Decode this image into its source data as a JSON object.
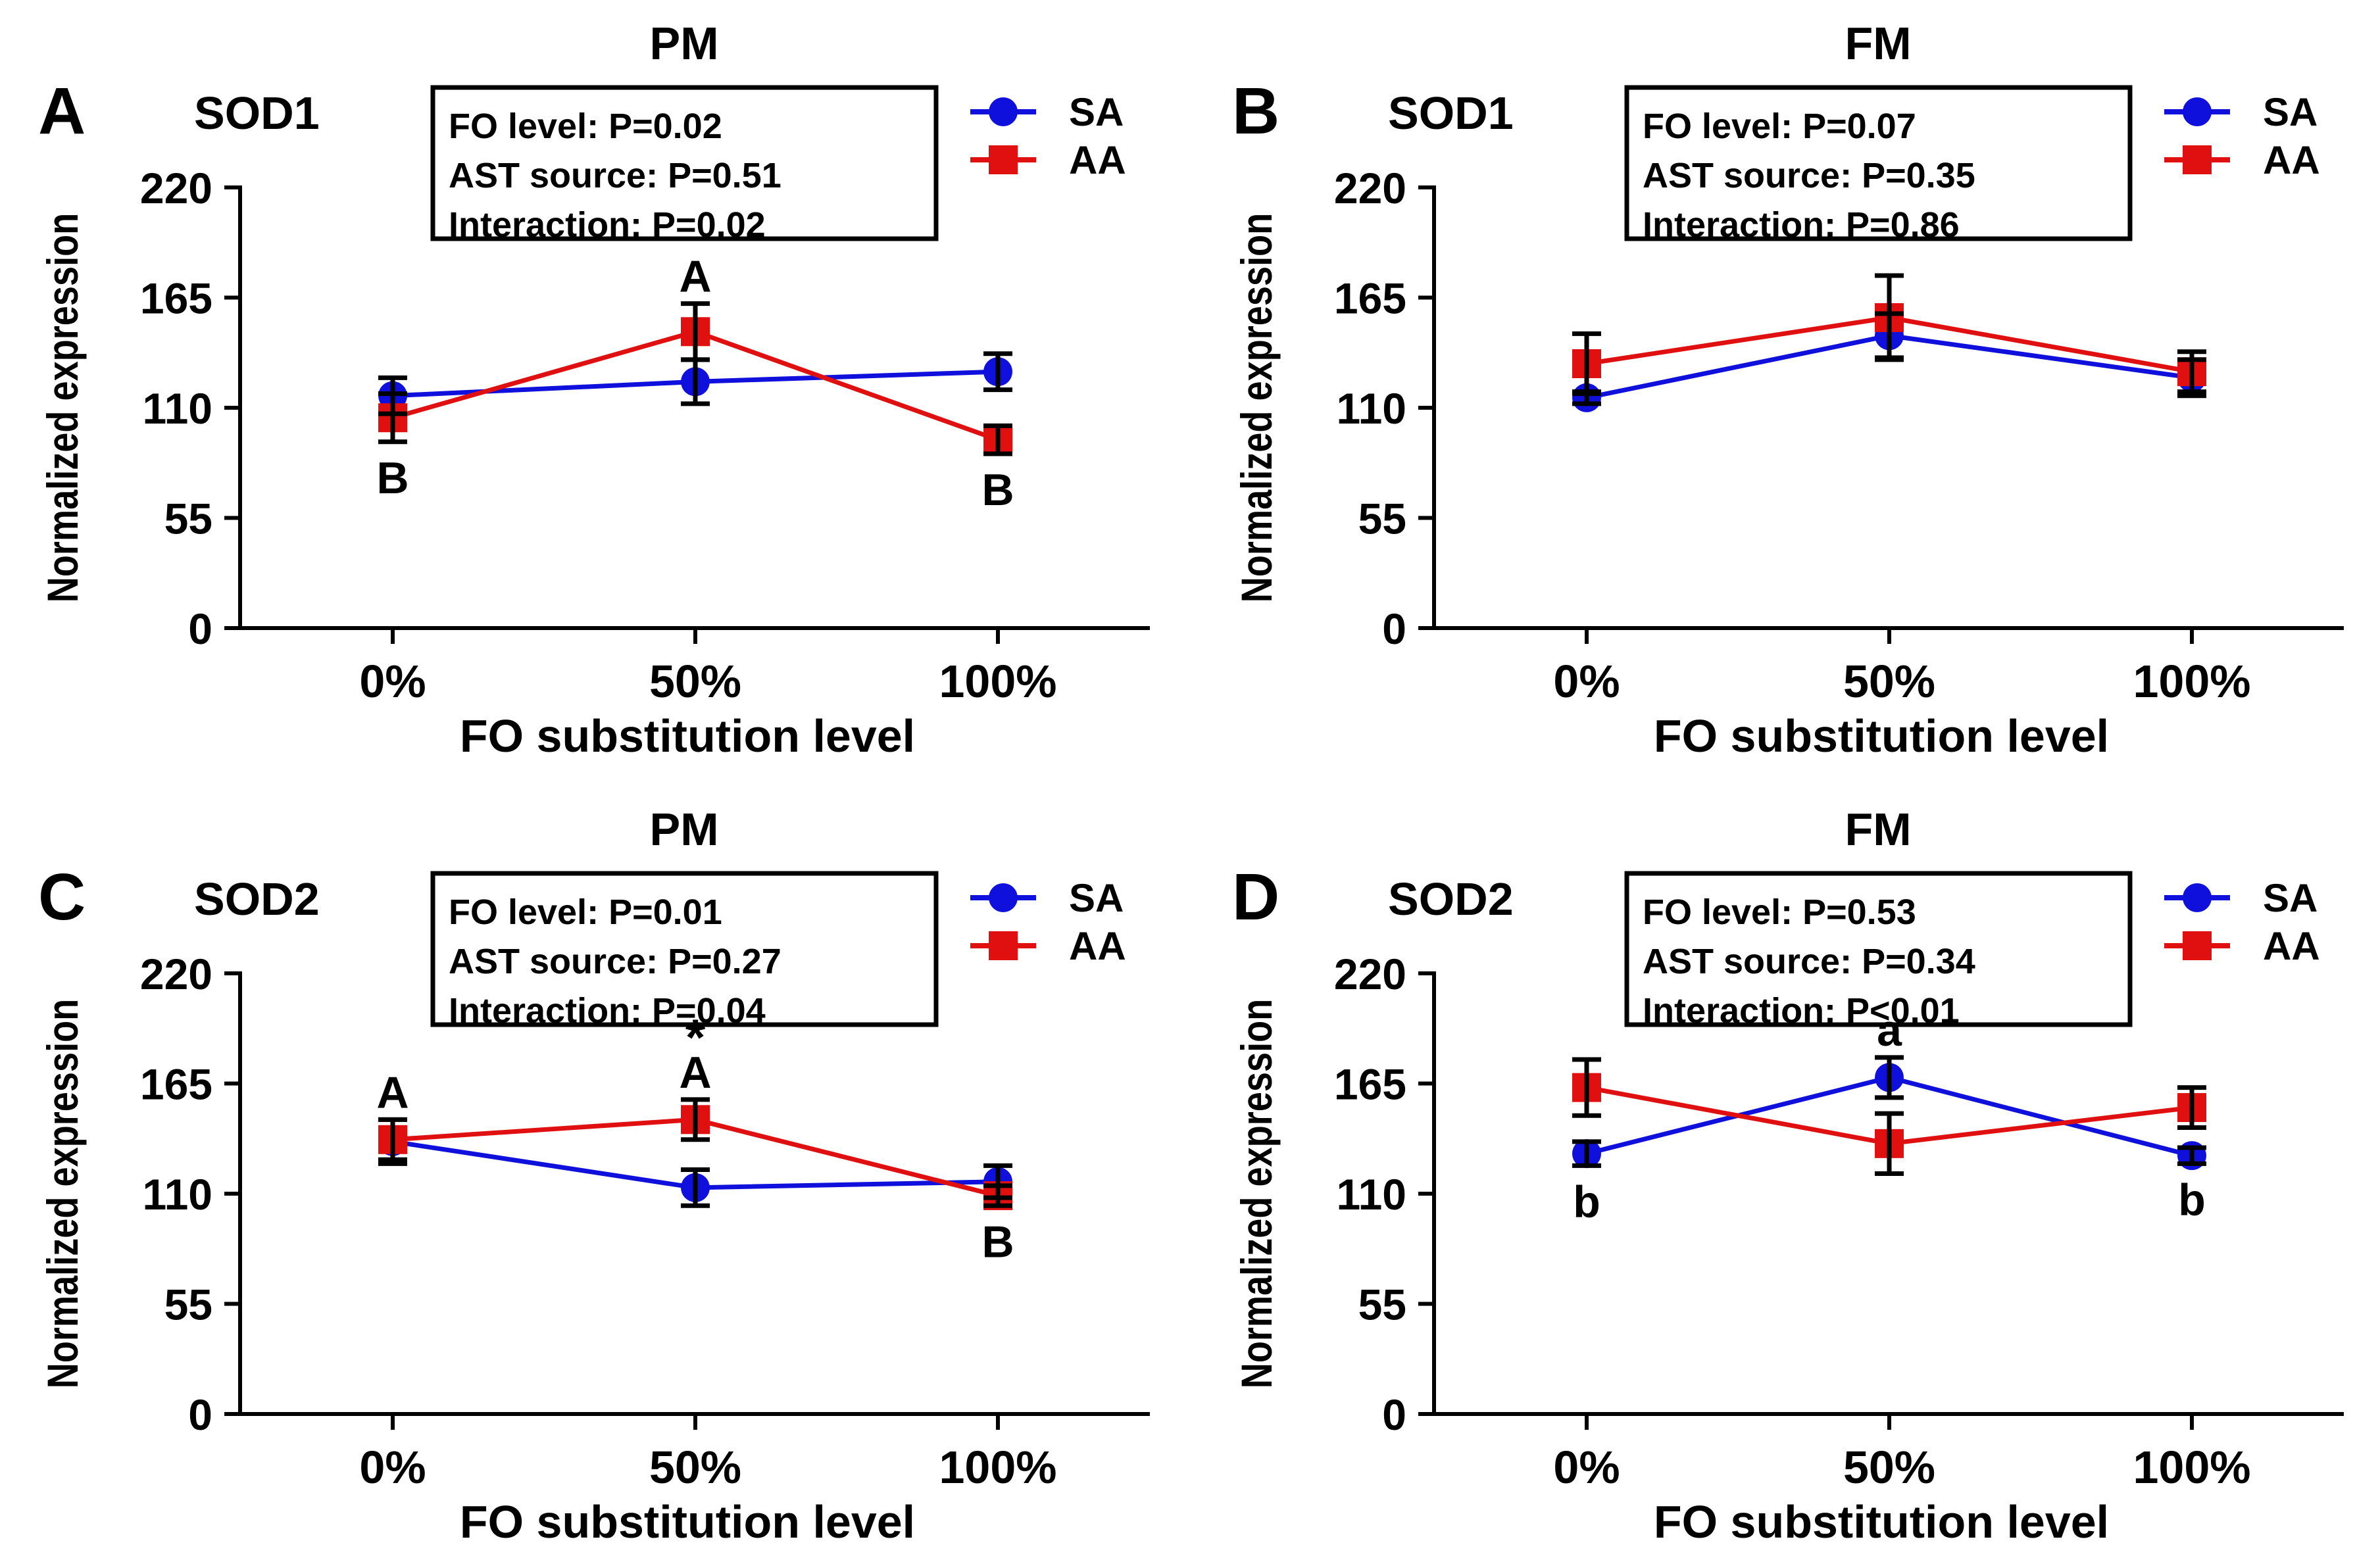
{
  "colors": {
    "SA": "#1010dd",
    "AA": "#e01010",
    "axis": "#000000"
  },
  "chart_data": [
    {
      "type": "line",
      "panel": "A",
      "title": "PM",
      "gene": "SOD1",
      "xlabel": "FO substitution level",
      "ylabel": "Normalized expression",
      "categories": [
        "0%",
        "50%",
        "100%"
      ],
      "ylim": [
        0,
        220
      ],
      "yticks": [
        0,
        55,
        110,
        165,
        220
      ],
      "legend": "top-right",
      "stats": [
        "FO level: P=0.02",
        "AST source: P=0.51",
        "Interaction: P=0.02"
      ],
      "series": [
        {
          "name": "SA",
          "marker": "circle",
          "values": [
            116,
            123,
            128
          ],
          "errors": [
            9,
            11,
            9
          ]
        },
        {
          "name": "AA",
          "marker": "square",
          "values": [
            105,
            148,
            94
          ],
          "errors": [
            12,
            14,
            7
          ]
        }
      ],
      "annotations": [
        {
          "text": "B",
          "index": 0,
          "position": "below"
        },
        {
          "text": "A",
          "index": 1,
          "position": "above"
        },
        {
          "text": "B",
          "index": 2,
          "position": "below"
        }
      ]
    },
    {
      "type": "line",
      "panel": "B",
      "title": "FM",
      "gene": "SOD1",
      "xlabel": "FO substitution level",
      "ylabel": "Normalized expression",
      "categories": [
        "0%",
        "50%",
        "100%"
      ],
      "ylim": [
        0,
        220
      ],
      "yticks": [
        0,
        55,
        110,
        165,
        220
      ],
      "legend": "top-right",
      "stats": [
        "FO level: P=0.07",
        "AST source: P=0.35",
        "Interaction: P=0.86"
      ],
      "series": [
        {
          "name": "SA",
          "marker": "circle",
          "values": [
            115,
            146,
            125
          ],
          "errors": [
            3,
            11,
            9
          ]
        },
        {
          "name": "AA",
          "marker": "square",
          "values": [
            132,
            155,
            128
          ],
          "errors": [
            15,
            21,
            10
          ]
        }
      ],
      "annotations": []
    },
    {
      "type": "line",
      "panel": "C",
      "title": "PM",
      "gene": "SOD2",
      "xlabel": "FO substitution level",
      "ylabel": "Normalized expression",
      "categories": [
        "0%",
        "50%",
        "100%"
      ],
      "ylim": [
        0,
        220
      ],
      "yticks": [
        0,
        55,
        110,
        165,
        220
      ],
      "legend": "top-right",
      "stats": [
        "FO level: P=0.01",
        "AST source: P=0.27",
        "Interaction: P=0.04"
      ],
      "series": [
        {
          "name": "SA",
          "marker": "circle",
          "values": [
            136,
            113,
            116
          ],
          "errors": [
            11,
            9,
            8
          ]
        },
        {
          "name": "AA",
          "marker": "square",
          "values": [
            137,
            147,
            109
          ],
          "errors": [
            10,
            10,
            5
          ]
        }
      ],
      "annotations": [
        {
          "text": "A",
          "index": 0,
          "position": "above"
        },
        {
          "text": "*",
          "index": 1,
          "position": "above-far"
        },
        {
          "text": "A",
          "index": 1,
          "position": "above"
        },
        {
          "text": "B",
          "index": 2,
          "position": "below"
        }
      ]
    },
    {
      "type": "line",
      "panel": "D",
      "title": "FM",
      "gene": "SOD2",
      "xlabel": "FO substitution level",
      "ylabel": "Normalized expression",
      "categories": [
        "0%",
        "50%",
        "100%"
      ],
      "ylim": [
        0,
        220
      ],
      "yticks": [
        0,
        55,
        110,
        165,
        220
      ],
      "legend": "top-right",
      "stats": [
        "FO level: P=0.53",
        "AST source: P=0.34",
        "Interaction: P<0.01"
      ],
      "series": [
        {
          "name": "SA",
          "marker": "circle",
          "values": [
            130,
            168,
            129
          ],
          "errors": [
            6,
            10,
            4
          ]
        },
        {
          "name": "AA",
          "marker": "square",
          "values": [
            163,
            135,
            153
          ],
          "errors": [
            14,
            15,
            10
          ]
        }
      ],
      "annotations": [
        {
          "text": "b",
          "index": 0,
          "position": "below"
        },
        {
          "text": "a",
          "index": 1,
          "position": "above"
        },
        {
          "text": "b",
          "index": 2,
          "position": "below"
        }
      ]
    }
  ]
}
